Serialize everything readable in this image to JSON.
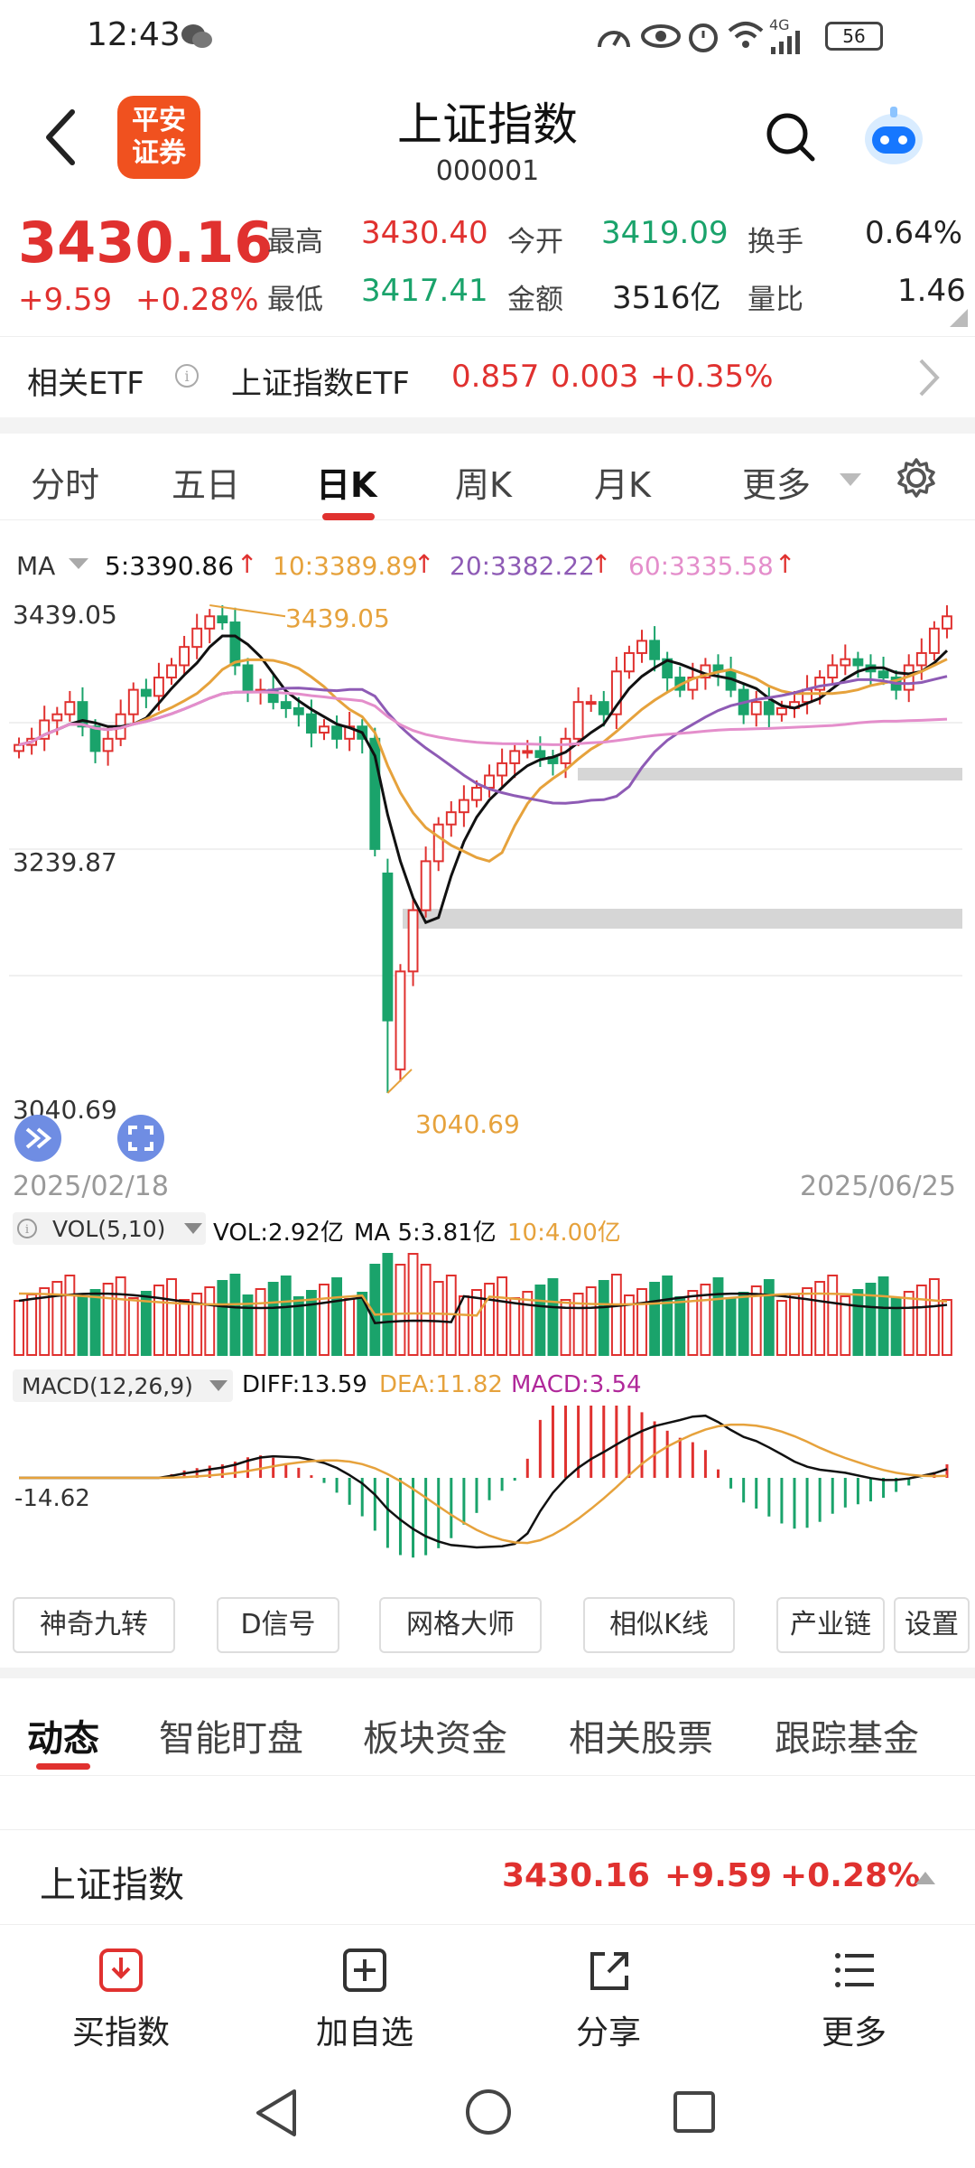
{
  "status_bar": {
    "time": "12:43",
    "battery": "56",
    "network": "4G"
  },
  "header": {
    "title": "上证指数",
    "code": "000001",
    "logo_text_line1": "平安",
    "logo_text_line2": "证券"
  },
  "quote": {
    "price": "3430.16",
    "change": "+9.59",
    "change_pct": "+0.28%",
    "stats": [
      {
        "label": "最高",
        "value": "3430.40"
      },
      {
        "label": "今开",
        "value": "3419.09"
      },
      {
        "label": "换手",
        "value": "0.64%"
      },
      {
        "label": "最低",
        "value": "3417.41"
      },
      {
        "label": "金额",
        "value": "3516亿"
      },
      {
        "label": "量比",
        "value": "1.46"
      }
    ]
  },
  "etf": {
    "label": "相关ETF",
    "name": "上证指数ETF",
    "price": "0.857",
    "change": "0.003",
    "change_pct": "+0.35%"
  },
  "tabs": [
    "分时",
    "五日",
    "日K",
    "周K",
    "月K",
    "更多"
  ],
  "active_tab": "日K",
  "ma_legend": {
    "label": "MA",
    "ma5": "5:3390.86",
    "ma10": "10:3389.89",
    "ma20": "20:3382.22",
    "ma60": "60:3335.58"
  },
  "chart_data": {
    "type": "candlestick",
    "y_ticks": [
      "3439.05",
      "3239.87",
      "3040.69"
    ],
    "high_marker": "3439.05",
    "low_marker": "3040.69",
    "ylim": [
      3040.69,
      3439.05
    ],
    "x_start": "2025/02/18",
    "x_end": "2025/06/25",
    "closes": [
      3325,
      3330,
      3345,
      3350,
      3360,
      3340,
      3320,
      3330,
      3350,
      3370,
      3365,
      3380,
      3390,
      3405,
      3420,
      3430,
      3425,
      3390,
      3370,
      3370,
      3360,
      3355,
      3350,
      3335,
      3340,
      3330,
      3340,
      3330,
      3240,
      3100,
      3140,
      3190,
      3230,
      3260,
      3270,
      3280,
      3290,
      3300,
      3310,
      3320,
      3320,
      3315,
      3310,
      3330,
      3360,
      3360,
      3350,
      3385,
      3400,
      3410,
      3395,
      3380,
      3370,
      3380,
      3390,
      3385,
      3370,
      3350,
      3360,
      3350,
      3355,
      3360,
      3370,
      3380,
      3390,
      3395,
      3390,
      3385,
      3380,
      3370,
      3390,
      3400,
      3420,
      3430
    ],
    "colors": {
      "up": "#e0312f",
      "down": "#1aa36b",
      "ma5": "#111111",
      "ma10": "#e6a23c",
      "ma20": "#8e5bb5",
      "ma60": "#e48ecb"
    }
  },
  "vol_legend": {
    "label": "VOL(5,10)",
    "vol": "VOL:2.92亿",
    "ma5": "MA 5:3.81亿",
    "ma10": "10:4.00亿"
  },
  "macd_legend": {
    "label": "MACD(12,26,9)",
    "diff": "DIFF:13.59",
    "dea": "DEA:11.82",
    "macd": "MACD:3.54",
    "axis": "-14.62"
  },
  "tool_buttons": [
    "神奇九转",
    "D信号",
    "网格大师",
    "相似K线",
    "产业链",
    "设置"
  ],
  "bottom_tabs": [
    "动态",
    "智能盯盘",
    "板块资金",
    "相关股票",
    "跟踪基金"
  ],
  "ticker": {
    "name": "上证指数",
    "price": "3430.16",
    "change": "+9.59",
    "change_pct": "+0.28%"
  },
  "actions": [
    "买指数",
    "加自选",
    "分享",
    "更多"
  ]
}
